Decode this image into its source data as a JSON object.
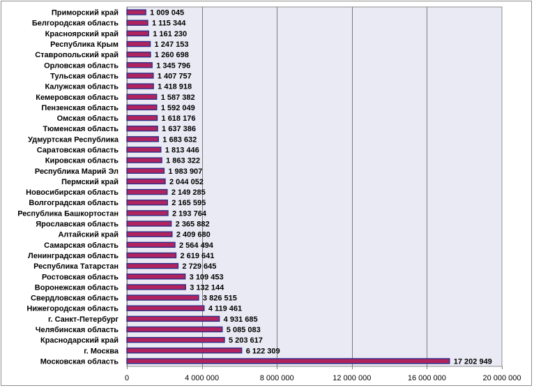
{
  "chart_data": {
    "type": "bar",
    "orientation": "horizontal",
    "categories": [
      "Приморский край",
      "Белгородская область",
      "Красноярский край",
      "Республика  Крым",
      "Ставропольский  край",
      "Орловская область",
      "Тульская область",
      "Калужская область",
      "Кемеровская область",
      "Пензенская область",
      "Омская область",
      "Тюменская область",
      "Удмуртская Республика",
      "Саратовская область",
      "Кировская область",
      "Республика  Марий Эл",
      "Пермский край",
      "Новосибирская область",
      "Волгоградская область",
      "Республика  Башкортостан",
      "Ярославская область",
      "Алтайский  край",
      "Самарская область",
      "Ленинградская область",
      "Республика  Татарстан",
      "Ростовская область",
      "Воронежская область",
      "Свердловская область",
      "Нижегородская область",
      "г. Санкт-Петербург",
      "Челябинская область",
      "Краснодарский край",
      "г. Москва",
      "Московская область"
    ],
    "values": [
      1009045,
      1115344,
      1161230,
      1247153,
      1260698,
      1345796,
      1407757,
      1418918,
      1587382,
      1592049,
      1618176,
      1637386,
      1683632,
      1813446,
      1863322,
      1983907,
      2044052,
      2149285,
      2165595,
      2193764,
      2365882,
      2409680,
      2564494,
      2619641,
      2729645,
      3109453,
      3132144,
      3826515,
      4119461,
      4931685,
      5085083,
      5203617,
      6122309,
      17202949
    ],
    "value_labels": [
      "1 009 045",
      "1 115 344",
      "1 161 230",
      "1 247 153",
      "1 260 698",
      "1 345 796",
      "1 407 757",
      "1 418 918",
      "1 587 382",
      "1 592 049",
      "1 618 176",
      "1 637 386",
      "1 683 632",
      "1 813 446",
      "1 863 322",
      "1 983 907",
      "2 044 052",
      "2 149 285",
      "2 165 595",
      "2 193 764",
      "2 365 882",
      "2 409 680",
      "2 564 494",
      "2 619 641",
      "2 729 645",
      "3 109 453",
      "3 132 144",
      "3 826 515",
      "4 119 461",
      "4 931 685",
      "5 085 083",
      "5 203 617",
      "6 122 309",
      "17 202 949"
    ],
    "xlim": [
      0,
      20000000
    ],
    "x_ticks": [
      0,
      4000000,
      8000000,
      12000000,
      16000000,
      20000000
    ],
    "x_tick_labels": [
      "0",
      "4 000 000",
      "8 000 000",
      "12 000 000",
      "16 000 000",
      "20 000 000"
    ],
    "title": "",
    "xlabel": "",
    "ylabel": "",
    "grid": "vertical",
    "legend": "none",
    "colors": {
      "bar_fill": "#b0235e",
      "bar_edge": "#2d2f8a",
      "plot_bg": "#eaeaf4",
      "grid": "#7a7a7a",
      "frame": "#8c8c8c"
    }
  }
}
